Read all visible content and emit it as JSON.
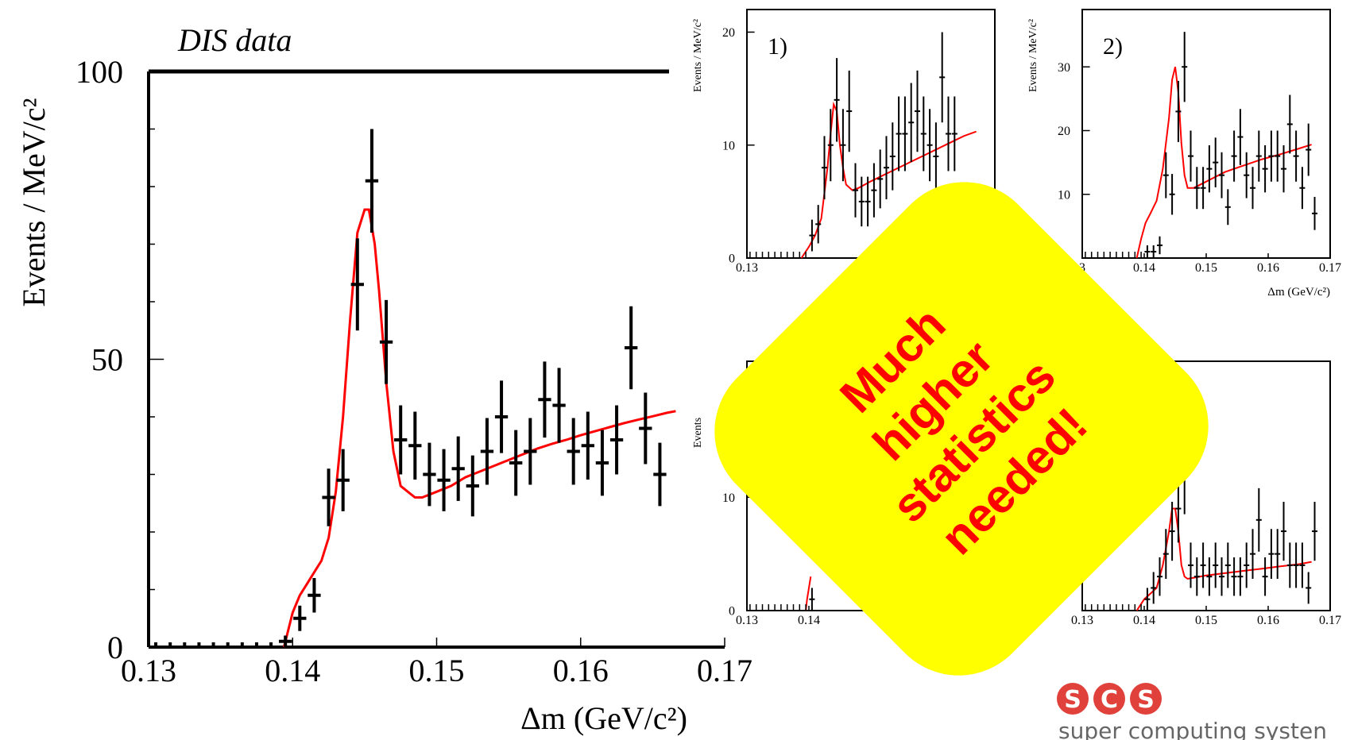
{
  "chart_data": [
    {
      "type": "scatter",
      "title": "DIS data",
      "xlabel": "Δm  (GeV/c²)",
      "ylabel": "Events / MeV/c²",
      "xlim": [
        0.13,
        0.17
      ],
      "ylim": [
        0,
        100
      ],
      "x_ticks": [
        "0.13",
        "0.14",
        "0.15",
        "0.16",
        "0.17"
      ],
      "y_ticks": [
        "0",
        "50",
        "100"
      ],
      "grid": false,
      "series": [
        {
          "kind": "points-with-errors",
          "color": "#000000",
          "x": [
            0.1305,
            0.1315,
            0.1325,
            0.1335,
            0.1345,
            0.1355,
            0.1365,
            0.1375,
            0.1385,
            0.1395,
            0.1405,
            0.1415,
            0.1425,
            0.1435,
            0.1445,
            0.1455,
            0.1465,
            0.1475,
            0.1485,
            0.1495,
            0.1505,
            0.1515,
            0.1525,
            0.1535,
            0.1545,
            0.1555,
            0.1565,
            0.1575,
            0.1585,
            0.1595,
            0.1605,
            0.1615,
            0.1625,
            0.1635,
            0.1645,
            0.1655,
            0.1665
          ],
          "y": [
            0,
            0,
            0,
            0,
            0,
            0,
            0,
            0,
            0,
            1,
            5,
            9,
            26,
            29,
            63,
            81,
            53,
            36,
            35,
            30,
            29,
            31,
            28,
            34,
            40,
            32,
            34,
            43,
            42,
            34,
            35,
            32,
            36,
            52,
            38,
            30,
            40
          ],
          "yerr": [
            0,
            0,
            0,
            0,
            0,
            0,
            0,
            0,
            0,
            1,
            2.2,
            3,
            5,
            5.4,
            8,
            9,
            7.3,
            6,
            5.9,
            5.5,
            5.4,
            5.6,
            5.3,
            5.8,
            6.3,
            5.7,
            5.8,
            6.6,
            6.5,
            5.8,
            5.9,
            5.7,
            6,
            7.2,
            6.2,
            5.5,
            6.3
          ]
        },
        {
          "kind": "fit-curve",
          "color": "#ff0000",
          "x": [
            0.1394,
            0.14,
            0.1405,
            0.141,
            0.1415,
            0.142,
            0.1425,
            0.143,
            0.1435,
            0.144,
            0.1445,
            0.145,
            0.1453,
            0.1457,
            0.146,
            0.1465,
            0.147,
            0.1475,
            0.148,
            0.1485,
            0.149,
            0.15,
            0.151,
            0.152,
            0.153,
            0.154,
            0.155,
            0.156,
            0.157,
            0.158,
            0.159,
            0.16,
            0.161,
            0.162,
            0.163,
            0.164,
            0.165,
            0.166,
            0.1666
          ],
          "y": [
            0,
            6,
            9,
            11,
            13,
            15,
            19,
            27,
            40,
            57,
            72,
            76,
            76,
            70,
            62,
            46,
            34,
            28,
            27,
            26,
            26,
            27,
            28,
            29.5,
            30.5,
            31.5,
            32.5,
            33.5,
            34.5,
            35.3,
            36,
            36.8,
            37.5,
            38.2,
            38.9,
            39.5,
            40.1,
            40.7,
            41
          ]
        }
      ],
      "annotations": []
    },
    {
      "type": "scatter",
      "title": "",
      "panel_label": "1)",
      "xlabel": "",
      "ylabel": "Events / MeV/c²",
      "xlim": [
        0.13,
        0.17
      ],
      "ylim": [
        0,
        22
      ],
      "x_ticks": [
        "0.13"
      ],
      "y_ticks": [
        "0",
        "10",
        "20"
      ],
      "grid": false,
      "series": [
        {
          "kind": "points-with-errors",
          "color": "#000000",
          "x": [
            0.1405,
            0.1415,
            0.1425,
            0.1435,
            0.1445,
            0.1455,
            0.1465,
            0.1475,
            0.1485,
            0.1495,
            0.1505,
            0.1515,
            0.1525,
            0.1535,
            0.1545,
            0.1555,
            0.1565,
            0.1575,
            0.1585,
            0.1595,
            0.1605,
            0.1615,
            0.1625,
            0.1635
          ],
          "y": [
            2,
            3,
            8,
            10,
            14,
            10,
            13,
            6,
            5,
            5,
            6,
            7,
            8,
            9,
            11,
            11,
            12,
            13,
            11,
            10,
            9,
            16,
            11,
            11
          ],
          "yerr": [
            1.4,
            1.7,
            2.8,
            3.2,
            3.7,
            3.2,
            3.6,
            2.4,
            2.2,
            2.2,
            2.4,
            2.6,
            2.8,
            3,
            3.3,
            3.3,
            3.5,
            3.6,
            3.3,
            3.2,
            3,
            4,
            3.3,
            3.3
          ]
        },
        {
          "kind": "fit-curve",
          "color": "#ff0000",
          "x": [
            0.1388,
            0.14,
            0.141,
            0.142,
            0.143,
            0.1435,
            0.144,
            0.1445,
            0.145,
            0.1455,
            0.146,
            0.147,
            0.148,
            0.15,
            0.153,
            0.156,
            0.159,
            0.162,
            0.165,
            0.167
          ],
          "y": [
            0,
            1,
            2,
            3.5,
            8,
            11,
            13.6,
            13,
            10,
            8,
            6.5,
            6,
            6.2,
            6.8,
            7.6,
            8.4,
            9.2,
            10,
            10.8,
            11.2
          ]
        }
      ],
      "annotations": []
    },
    {
      "type": "scatter",
      "title": "",
      "panel_label": "2)",
      "xlabel": "Δm  (GeV/c²)",
      "ylabel": "Events / MeV/c²",
      "xlim": [
        0.13,
        0.17
      ],
      "ylim": [
        0,
        39
      ],
      "x_ticks": [
        "3",
        "0.14",
        "0.15",
        "0.16",
        "0.17"
      ],
      "y_ticks": [
        "10",
        "20",
        "30"
      ],
      "grid": false,
      "series": [
        {
          "kind": "points-with-errors",
          "color": "#000000",
          "x": [
            0.1405,
            0.1415,
            0.1425,
            0.1435,
            0.1445,
            0.1455,
            0.1465,
            0.1475,
            0.1485,
            0.1495,
            0.1505,
            0.1515,
            0.1525,
            0.1535,
            0.1545,
            0.1555,
            0.1565,
            0.1575,
            0.1585,
            0.1595,
            0.1605,
            0.1615,
            0.1625,
            0.1635,
            0.1645,
            0.1655,
            0.1665,
            0.1675
          ],
          "y": [
            1,
            1,
            2,
            13,
            10,
            23,
            30,
            16,
            11,
            11,
            14,
            15,
            13,
            8,
            16,
            19,
            13,
            11,
            16,
            14,
            16,
            16,
            14,
            21,
            16,
            11,
            17,
            7
          ],
          "yerr": [
            1,
            1,
            1.4,
            3.6,
            3.2,
            4.8,
            5.5,
            4,
            3.3,
            3.3,
            3.7,
            3.9,
            3.6,
            2.8,
            4,
            4.4,
            3.6,
            3.3,
            4,
            3.7,
            4,
            4,
            3.7,
            4.6,
            4,
            3.3,
            4.1,
            2.6
          ]
        },
        {
          "kind": "fit-curve",
          "color": "#ff0000",
          "x": [
            0.1388,
            0.1395,
            0.1402,
            0.141,
            0.142,
            0.143,
            0.144,
            0.1445,
            0.145,
            0.1455,
            0.146,
            0.1465,
            0.147,
            0.148,
            0.15,
            0.153,
            0.156,
            0.159,
            0.162,
            0.165,
            0.167
          ],
          "y": [
            0,
            3,
            5.5,
            7,
            9,
            14,
            22,
            28,
            30,
            26,
            18,
            13,
            11,
            11,
            12,
            13.5,
            14.5,
            15.5,
            16.3,
            17.2,
            17.8
          ]
        }
      ],
      "annotations": []
    },
    {
      "type": "scatter",
      "title": "",
      "panel_label": "",
      "xlabel": "",
      "ylabel": "Events",
      "xlim": [
        0.13,
        0.17
      ],
      "ylim": [
        0,
        22
      ],
      "x_ticks": [
        "0.13",
        "0.14"
      ],
      "y_ticks": [
        "0",
        "10"
      ],
      "grid": false,
      "series": [
        {
          "kind": "points-with-errors",
          "color": "#000000",
          "x": [
            0.1405
          ],
          "y": [
            1
          ],
          "yerr": [
            1
          ]
        },
        {
          "kind": "fit-curve",
          "color": "#ff0000",
          "x": [
            0.1395,
            0.1397,
            0.14,
            0.1403
          ],
          "y": [
            0,
            1,
            2,
            3
          ]
        }
      ],
      "annotations": []
    },
    {
      "type": "scatter",
      "title": "",
      "panel_label": "",
      "xlabel": "",
      "ylabel": "",
      "xlim": [
        0.13,
        0.17
      ],
      "ylim": [
        0,
        22
      ],
      "x_ticks": [
        "0.13",
        "0.14",
        "0.15",
        "0.16",
        "0.17"
      ],
      "y_ticks": [],
      "grid": false,
      "series": [
        {
          "kind": "points-with-errors",
          "color": "#000000",
          "x": [
            0.1405,
            0.1415,
            0.1425,
            0.1435,
            0.1445,
            0.1455,
            0.1465,
            0.1475,
            0.1485,
            0.1495,
            0.1505,
            0.1515,
            0.1525,
            0.1535,
            0.1545,
            0.1555,
            0.1565,
            0.1575,
            0.1585,
            0.1595,
            0.1605,
            0.1615,
            0.1625,
            0.1635,
            0.1645,
            0.1655,
            0.1665,
            0.1675
          ],
          "y": [
            1,
            2,
            3,
            5,
            7,
            9,
            12,
            4,
            3,
            4,
            3,
            4,
            3,
            4,
            3,
            3,
            4,
            5,
            8,
            3,
            5,
            5,
            7,
            4,
            4,
            4,
            2,
            7
          ],
          "yerr": [
            1,
            1.4,
            1.7,
            2.2,
            2.6,
            3,
            3.5,
            2,
            1.7,
            2,
            1.7,
            2,
            1.7,
            2,
            1.7,
            1.7,
            2,
            2.2,
            2.8,
            1.7,
            2.2,
            2.2,
            2.6,
            2,
            2,
            2,
            1.4,
            2.6
          ]
        },
        {
          "kind": "fit-curve",
          "color": "#ff0000",
          "x": [
            0.1388,
            0.14,
            0.141,
            0.142,
            0.143,
            0.144,
            0.1445,
            0.145,
            0.1455,
            0.146,
            0.1465,
            0.147,
            0.148,
            0.15,
            0.153,
            0.156,
            0.159,
            0.162,
            0.165,
            0.167
          ],
          "y": [
            0,
            1,
            1.5,
            2,
            4,
            7,
            9,
            9,
            7,
            4,
            3,
            2.8,
            2.9,
            3.1,
            3.3,
            3.5,
            3.7,
            3.9,
            4.1,
            4.3
          ]
        }
      ],
      "annotations": []
    }
  ],
  "sticker": {
    "text_lines": [
      "Much",
      "higher",
      "statistics",
      "needed!"
    ],
    "background": "#ffff00",
    "text_color": "#ff0000"
  },
  "logo": {
    "letters": [
      "S",
      "C",
      "S"
    ],
    "tagline": "super computing systen",
    "color": "#e0413a"
  }
}
